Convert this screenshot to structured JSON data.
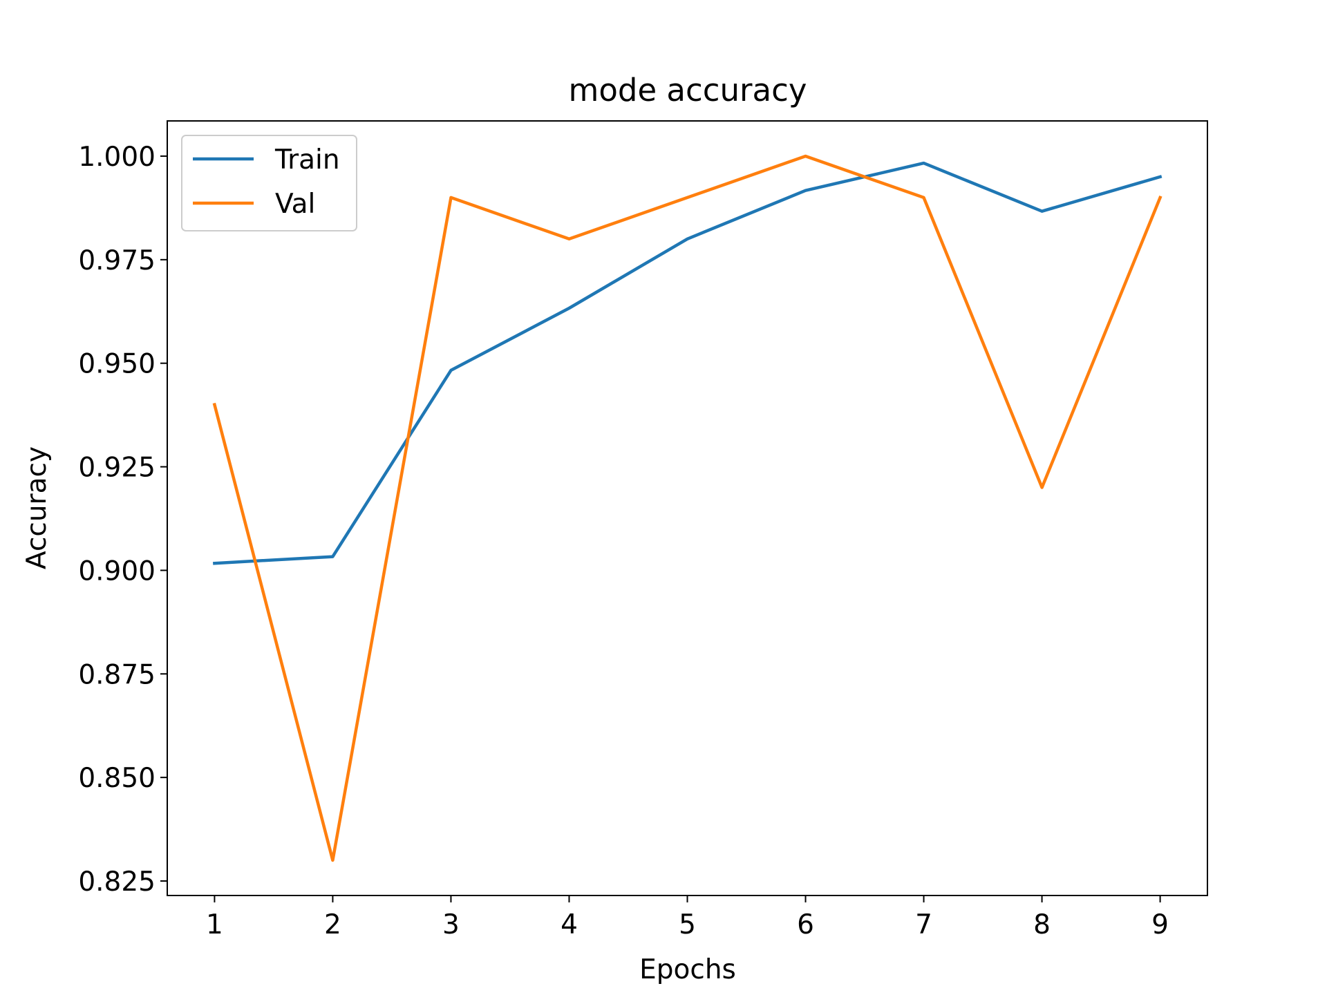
{
  "chart_data": {
    "type": "line",
    "title": "mode accuracy",
    "xlabel": "Epochs",
    "ylabel": "Accuracy",
    "x": [
      1,
      2,
      3,
      4,
      5,
      6,
      7,
      8,
      9
    ],
    "series": [
      {
        "name": "Train",
        "color": "#1f77b4",
        "values": [
          0.9017,
          0.9033,
          0.9483,
          0.9633,
          0.98,
          0.9917,
          0.9983,
          0.9867,
          0.995
        ]
      },
      {
        "name": "Val",
        "color": "#ff7f0e",
        "values": [
          0.94,
          0.83,
          0.99,
          0.98,
          0.99,
          1.0,
          0.99,
          0.92,
          0.99
        ]
      }
    ],
    "xticks": [
      "1",
      "2",
      "3",
      "4",
      "5",
      "6",
      "7",
      "8",
      "9"
    ],
    "yticks": [
      "0.825",
      "0.850",
      "0.875",
      "0.900",
      "0.925",
      "0.950",
      "0.975",
      "1.000"
    ],
    "xlim": [
      0.6,
      9.4
    ],
    "ylim": [
      0.8215,
      1.0085
    ],
    "grid": false,
    "legend_position": "upper-left"
  }
}
